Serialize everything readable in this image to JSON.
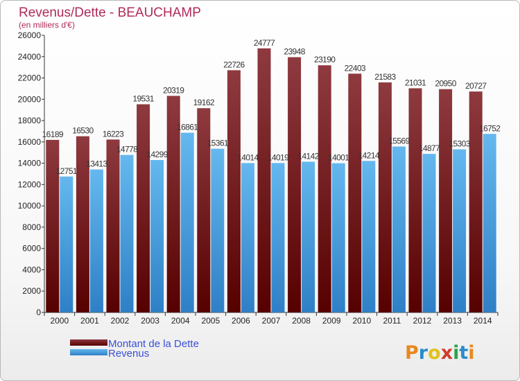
{
  "chart_data": {
    "type": "bar",
    "title": "Revenus/Dette - BEAUCHAMP",
    "subtitle": "(en milliers d'€)",
    "categories": [
      "2000",
      "2001",
      "2002",
      "2003",
      "2004",
      "2005",
      "2006",
      "2007",
      "2008",
      "2009",
      "2010",
      "2011",
      "2012",
      "2013",
      "2014"
    ],
    "series": [
      {
        "name": "Montant de la Dette",
        "values": [
          16189,
          16530,
          16223,
          19531,
          20319,
          19162,
          22726,
          24777,
          23948,
          23190,
          22403,
          21583,
          21031,
          20950,
          20727
        ]
      },
      {
        "name": "Revenus",
        "values": [
          12751,
          13413,
          14778,
          14299,
          16861,
          15361,
          14014,
          14019,
          14142,
          14001,
          14214,
          15569,
          14877,
          15303,
          16752
        ]
      }
    ],
    "ylim": [
      0,
      26000
    ],
    "ytick_step": 2000,
    "grid": false,
    "legend_position": "bottom-left"
  },
  "colors": {
    "dette_top": "#8e3a3f",
    "dette_bottom": "#560000",
    "revenus_top": "#64b8ee",
    "revenus_bottom": "#2f7fc6"
  },
  "logo": {
    "letters": [
      "P",
      "r",
      "o",
      "x",
      "i",
      "t",
      "i"
    ]
  }
}
